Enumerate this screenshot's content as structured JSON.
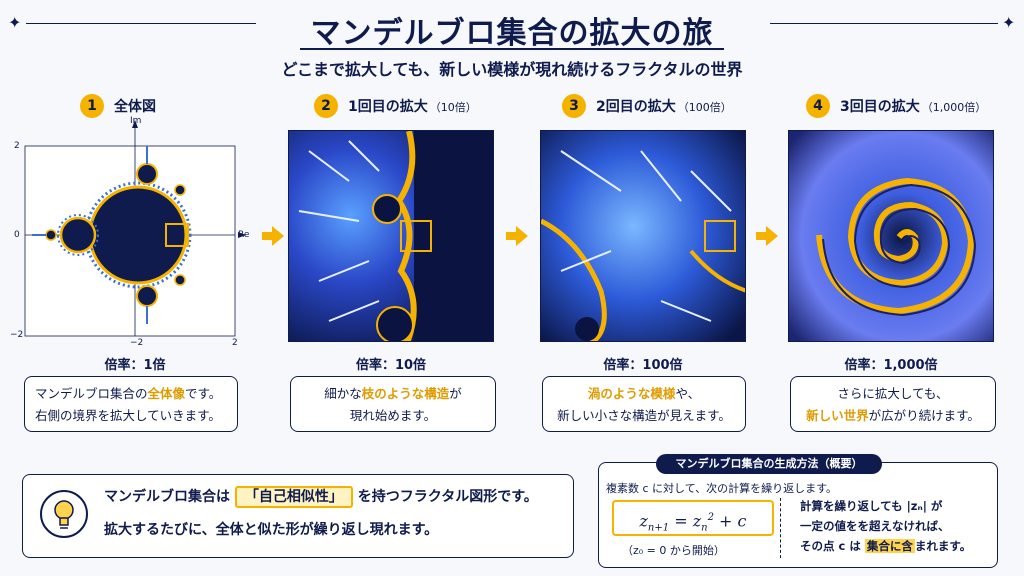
{
  "title": "マンデルブロ集合の拡大の旅",
  "subtitle": "どこまで拡大しても、新しい模様が現れ続けるフラクタルの世界",
  "stages": [
    {
      "num": "1",
      "label": "全体図",
      "suffix": "",
      "rate": "倍率：1倍"
    },
    {
      "num": "2",
      "label": "1回目の拡大",
      "suffix": "（10倍）",
      "rate": "倍率：10倍"
    },
    {
      "num": "3",
      "label": "2回目の拡大",
      "suffix": "（100倍）",
      "rate": "倍率：100倍"
    },
    {
      "num": "4",
      "label": "3回目の拡大",
      "suffix": "（1,000倍）",
      "rate": "倍率：1,000倍"
    }
  ],
  "axes": {
    "im": "Im",
    "re": "Re",
    "y_top": "2",
    "y_zero": "0",
    "y_bottom": "−2",
    "x_left": "−2",
    "x_right": "2",
    "x_tick_mid": "−2"
  },
  "captions": [
    {
      "a": "マンデルブロ集合の",
      "b": "全体像",
      "c": "です。",
      "d": "右側の境界を拡大していきます。"
    },
    {
      "a": "細かな",
      "b": "枝のような構造",
      "c": "が",
      "d": "現れ始めます。"
    },
    {
      "a": "",
      "b": "渦のような模様",
      "c": "や、",
      "d": "新しい小さな構造が見えます。"
    },
    {
      "a": "さらに拡大しても、",
      "b": "新しい世界",
      "c": "が広がり続けます。",
      "d": ""
    }
  ],
  "insight": {
    "l1a": "マンデルブロ集合は",
    "badge": "「自己相似性」",
    "l1b": "を持つフラクタル図形です。",
    "l2": "拡大するたびに、全体と似た形が繰り返し現れます。"
  },
  "method": {
    "title": "マンデルブロ集合の生成方法（概要）",
    "intro": "複素数 c に対して、次の計算を繰り返します。",
    "start": "（z₀ = 0 から開始）",
    "r1": "計算を繰り返しても |zₙ| が",
    "r2": "一定の値をを超えなければ、",
    "r3a": "その点 c は",
    "r3b": "集合に含",
    "r3c": "まれます。"
  },
  "colors": {
    "navy": "#0f1b4d",
    "gold": "#f5b300",
    "bg": "#f7f8fb"
  }
}
